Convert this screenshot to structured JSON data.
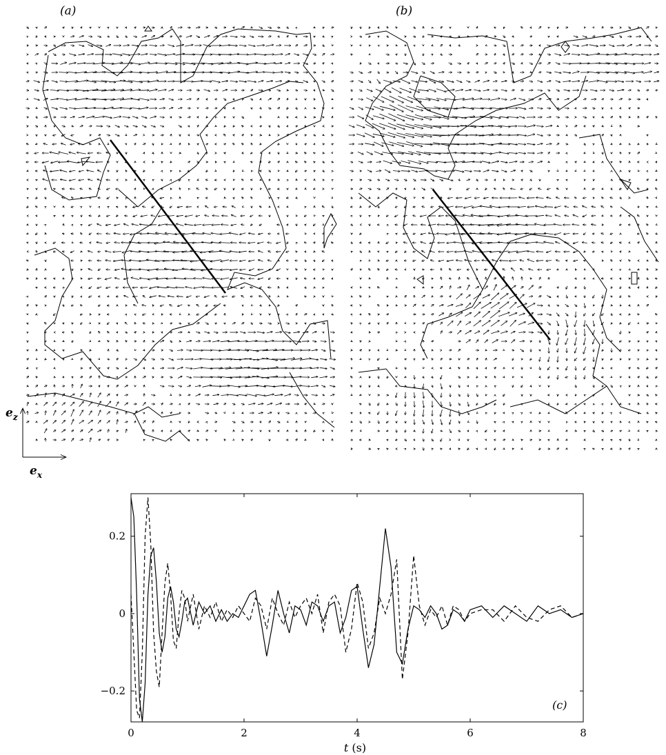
{
  "panels": {
    "a": {
      "label": "(a)"
    },
    "b": {
      "label": "(b)"
    },
    "c": {
      "label": "(c)"
    }
  },
  "axes_legend": {
    "ez_symbol": "e",
    "ez_sub": "z",
    "ex_symbol": "e",
    "ex_sub": "x"
  },
  "chart_data": {
    "type": "line",
    "title": "",
    "xlabel": "t (s)",
    "xlabel_var": "t",
    "xlabel_unit": " (s)",
    "ylabel": "",
    "xlim": [
      0,
      8
    ],
    "ylim": [
      -0.28,
      0.31
    ],
    "xticks": [
      0,
      2,
      4,
      6,
      8
    ],
    "yticks": [
      -0.2,
      0,
      0.2
    ],
    "ytick_labels": [
      "−0.2",
      "0",
      "0.2"
    ],
    "xtick_labels": [
      "0",
      "2",
      "4",
      "6",
      "8"
    ],
    "grid": false,
    "series": [
      {
        "style": "solid",
        "x": [
          0,
          0.05,
          0.1,
          0.15,
          0.2,
          0.25,
          0.3,
          0.35,
          0.4,
          0.45,
          0.5,
          0.55,
          0.6,
          0.65,
          0.7,
          0.75,
          0.8,
          0.85,
          0.9,
          0.95,
          1.0,
          1.1,
          1.2,
          1.3,
          1.4,
          1.5,
          1.6,
          1.7,
          1.8,
          1.9,
          2.0,
          2.1,
          2.2,
          2.3,
          2.4,
          2.5,
          2.6,
          2.7,
          2.8,
          2.9,
          3.0,
          3.1,
          3.2,
          3.3,
          3.4,
          3.5,
          3.6,
          3.7,
          3.8,
          3.9,
          4.0,
          4.1,
          4.2,
          4.3,
          4.4,
          4.5,
          4.6,
          4.7,
          4.8,
          4.9,
          5.0,
          5.1,
          5.2,
          5.3,
          5.4,
          5.5,
          5.6,
          5.7,
          5.8,
          5.9,
          6.0,
          6.2,
          6.4,
          6.6,
          6.8,
          7.0,
          7.2,
          7.4,
          7.6,
          7.8,
          8.0
        ],
        "y": [
          0.3,
          0.25,
          0.05,
          -0.22,
          -0.28,
          -0.18,
          0.05,
          0.15,
          0.17,
          0.08,
          -0.05,
          -0.1,
          -0.06,
          0.04,
          0.07,
          0.03,
          -0.04,
          -0.06,
          -0.02,
          0.03,
          0.04,
          -0.03,
          0.03,
          0.0,
          0.02,
          -0.02,
          0.01,
          -0.02,
          0.0,
          -0.01,
          0.02,
          0.05,
          0.06,
          -0.02,
          -0.11,
          -0.03,
          0.06,
          0.0,
          -0.05,
          0.02,
          0.01,
          -0.03,
          0.03,
          0.02,
          -0.02,
          0.02,
          0.03,
          -0.05,
          -0.01,
          0.06,
          0.07,
          -0.04,
          -0.14,
          -0.08,
          0.07,
          0.22,
          0.12,
          -0.1,
          -0.13,
          -0.04,
          0.02,
          0.01,
          -0.01,
          0.02,
          0.0,
          -0.04,
          -0.03,
          0.01,
          0.0,
          -0.02,
          0.01,
          0.02,
          -0.01,
          0.02,
          0.0,
          -0.02,
          0.02,
          0.0,
          0.01,
          -0.01,
          0.0
        ]
      },
      {
        "style": "dashed",
        "x": [
          0,
          0.05,
          0.1,
          0.15,
          0.2,
          0.25,
          0.3,
          0.35,
          0.4,
          0.45,
          0.5,
          0.55,
          0.6,
          0.65,
          0.7,
          0.75,
          0.8,
          0.85,
          0.9,
          0.95,
          1.0,
          1.1,
          1.2,
          1.3,
          1.4,
          1.5,
          1.6,
          1.7,
          1.8,
          1.9,
          2.0,
          2.1,
          2.2,
          2.3,
          2.4,
          2.5,
          2.6,
          2.7,
          2.8,
          2.9,
          3.0,
          3.1,
          3.2,
          3.3,
          3.4,
          3.5,
          3.6,
          3.7,
          3.8,
          3.9,
          4.0,
          4.1,
          4.2,
          4.3,
          4.4,
          4.5,
          4.6,
          4.7,
          4.8,
          4.9,
          5.0,
          5.1,
          5.2,
          5.3,
          5.4,
          5.5,
          5.6,
          5.7,
          5.8,
          5.9,
          6.0,
          6.2,
          6.4,
          6.6,
          6.8,
          7.0,
          7.2,
          7.4,
          7.6,
          7.8,
          8.0
        ],
        "y": [
          0.05,
          -0.1,
          -0.25,
          -0.27,
          -0.1,
          0.2,
          0.3,
          0.18,
          -0.05,
          -0.15,
          -0.19,
          -0.05,
          0.08,
          0.13,
          0.05,
          -0.07,
          -0.09,
          0.0,
          0.06,
          0.04,
          -0.02,
          0.05,
          -0.04,
          0.02,
          -0.01,
          0.03,
          -0.02,
          0.01,
          -0.01,
          0.02,
          0.0,
          -0.02,
          0.04,
          0.02,
          -0.04,
          0.04,
          0.0,
          -0.03,
          0.03,
          -0.01,
          0.02,
          0.04,
          0.0,
          0.05,
          -0.05,
          0.03,
          0.05,
          0.02,
          -0.1,
          -0.04,
          0.08,
          0.03,
          -0.09,
          -0.05,
          0.04,
          0.0,
          0.05,
          0.14,
          -0.17,
          -0.05,
          0.15,
          0.02,
          -0.03,
          0.01,
          -0.01,
          0.02,
          -0.03,
          0.02,
          0.01,
          -0.02,
          0.0,
          0.01,
          0.01,
          -0.02,
          0.02,
          -0.01,
          -0.02,
          0.01,
          0.02,
          -0.01,
          0.0
        ]
      }
    ]
  }
}
